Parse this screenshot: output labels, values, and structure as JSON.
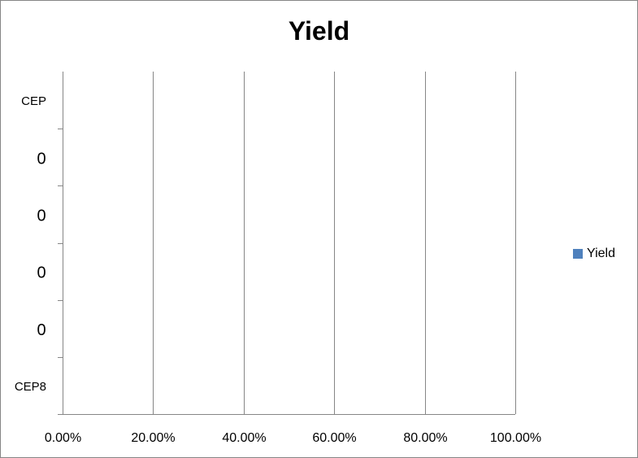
{
  "colors": {
    "series": "#4f81bd",
    "grid": "#868686",
    "axis": "#868686"
  },
  "chart_data": {
    "type": "bar",
    "orientation": "horizontal",
    "title": "Yield",
    "categories": [
      "CEP",
      "0",
      "0",
      "0",
      "0",
      "CEP8"
    ],
    "series": [
      {
        "name": "Yield",
        "values": [
          0,
          0,
          0,
          0,
          0,
          0
        ]
      }
    ],
    "x_tick_labels": [
      "0.00%",
      "20.00%",
      "40.00%",
      "60.00%",
      "80.00%",
      "100.00%"
    ],
    "xlim": [
      0,
      1
    ],
    "grid": "vertical major gridlines",
    "legend_position": "right"
  }
}
